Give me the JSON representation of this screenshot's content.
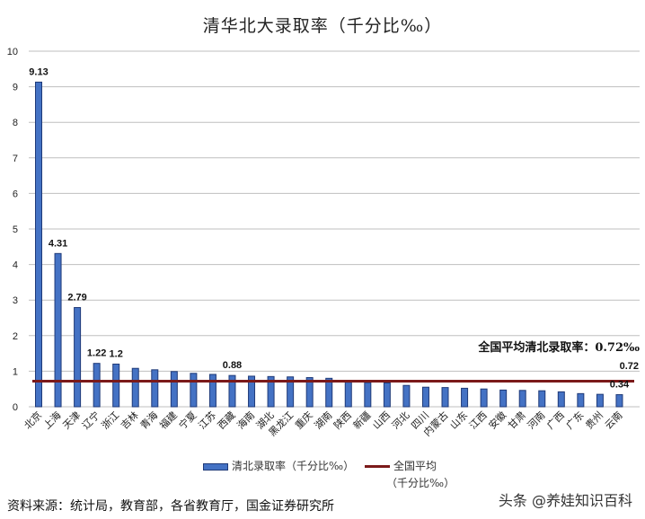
{
  "chart_data": {
    "type": "bar",
    "title": "清华北大录取率（千分比‰）",
    "xlabel": "",
    "ylabel": "",
    "ylim": [
      0,
      10
    ],
    "yticks": [
      0,
      1,
      2,
      3,
      4,
      5,
      6,
      7,
      8,
      9,
      10
    ],
    "grid": true,
    "legend_position": "bottom",
    "categories": [
      "北京",
      "上海",
      "天津",
      "辽宁",
      "浙江",
      "吉林",
      "青海",
      "福建",
      "宁夏",
      "江苏",
      "西藏",
      "海南",
      "湖北",
      "黑龙江",
      "重庆",
      "湖南",
      "陕西",
      "新疆",
      "山西",
      "河北",
      "四川",
      "内蒙古",
      "山东",
      "江西",
      "安徽",
      "甘肃",
      "河南",
      "广西",
      "广东",
      "贵州",
      "云南"
    ],
    "series": [
      {
        "name": "清北录取率（千分比‰）",
        "type": "bar",
        "color": "#4472C4",
        "values": [
          9.13,
          4.31,
          2.79,
          1.22,
          1.2,
          1.08,
          1.04,
          0.99,
          0.94,
          0.91,
          0.88,
          0.86,
          0.85,
          0.84,
          0.82,
          0.8,
          0.69,
          0.68,
          0.67,
          0.6,
          0.55,
          0.54,
          0.52,
          0.5,
          0.47,
          0.46,
          0.45,
          0.42,
          0.37,
          0.35,
          0.34
        ]
      },
      {
        "name": "全国平均（千分比‰）",
        "type": "line",
        "color": "#7B1A1A",
        "values": [
          0.72
        ]
      }
    ],
    "data_labels": [
      {
        "category": "北京",
        "text": "9.13"
      },
      {
        "category": "上海",
        "text": "4.31"
      },
      {
        "category": "天津",
        "text": "2.79"
      },
      {
        "category": "辽宁",
        "text": "1.22"
      },
      {
        "category": "浙江",
        "text": "1.2"
      },
      {
        "category": "西藏",
        "text": "0.88"
      },
      {
        "category": "云南",
        "text": "0.34"
      }
    ],
    "annotations": [
      {
        "text": "全国平均清北录取率：0.72‰"
      },
      {
        "text": "0.72"
      }
    ]
  },
  "title": "清华北大录取率（千分比‰）",
  "legend": {
    "bar_label": "清北录取率（千分比‰）",
    "line_label_1": "全国平均",
    "line_label_2": "（千分比‰）"
  },
  "annotation": {
    "avg_text": "全国平均清北录取率：0.72‰",
    "avg_value": "0.72"
  },
  "footer": {
    "source": "资料来源：统计局，教育部，各省教育厅，国金证券研究所",
    "watermark": "头条 @养娃知识百科"
  },
  "colors": {
    "bar": "#4472C4",
    "bar_border": "#1F3A78",
    "avg_line": "#7B1A1A",
    "grid": "#BFBFBF"
  }
}
